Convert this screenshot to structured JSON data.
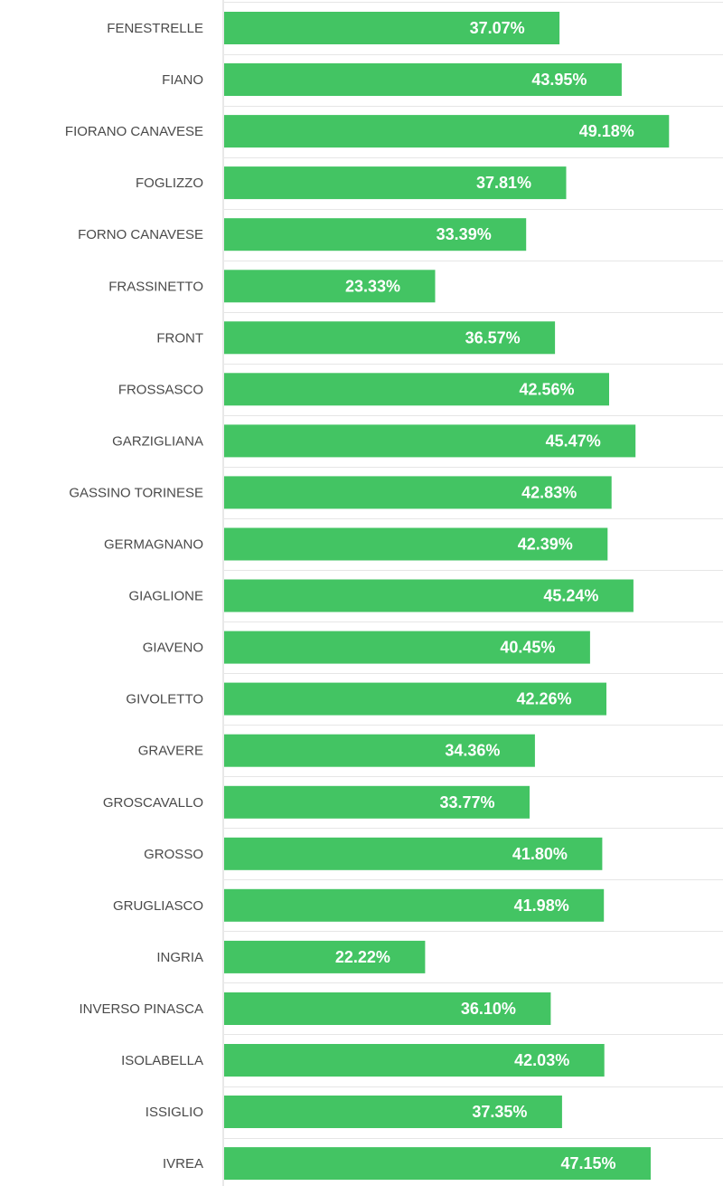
{
  "chart_data": {
    "type": "bar",
    "orientation": "horizontal",
    "title": "",
    "xlabel": "",
    "ylabel": "",
    "xlim": [
      0,
      55
    ],
    "grid": true,
    "value_suffix": "%",
    "bar_color": "#43c463",
    "label_color": "#ffffff",
    "categories": [
      "FENESTRELLE",
      "FIANO",
      "FIORANO CANAVESE",
      "FOGLIZZO",
      "FORNO CANAVESE",
      "FRASSINETTO",
      "FRONT",
      "FROSSASCO",
      "GARZIGLIANA",
      "GASSINO TORINESE",
      "GERMAGNANO",
      "GIAGLIONE",
      "GIAVENO",
      "GIVOLETTO",
      "GRAVERE",
      "GROSCAVALLO",
      "GROSSO",
      "GRUGLIASCO",
      "INGRIA",
      "INVERSO PINASCA",
      "ISOLABELLA",
      "ISSIGLIO",
      "IVREA"
    ],
    "values": [
      37.07,
      43.95,
      49.18,
      37.81,
      33.39,
      23.33,
      36.57,
      42.56,
      45.47,
      42.83,
      42.39,
      45.24,
      40.45,
      42.26,
      34.36,
      33.77,
      41.8,
      41.98,
      22.22,
      36.1,
      42.03,
      37.35,
      47.15
    ],
    "value_labels": [
      "37.07%",
      "43.95%",
      "49.18%",
      "37.81%",
      "33.39%",
      "23.33%",
      "36.57%",
      "42.56%",
      "45.47%",
      "42.83%",
      "42.39%",
      "45.24%",
      "40.45%",
      "42.26%",
      "34.36%",
      "33.77%",
      "41.80%",
      "41.98%",
      "22.22%",
      "36.10%",
      "42.03%",
      "37.35%",
      "47.15%"
    ]
  }
}
